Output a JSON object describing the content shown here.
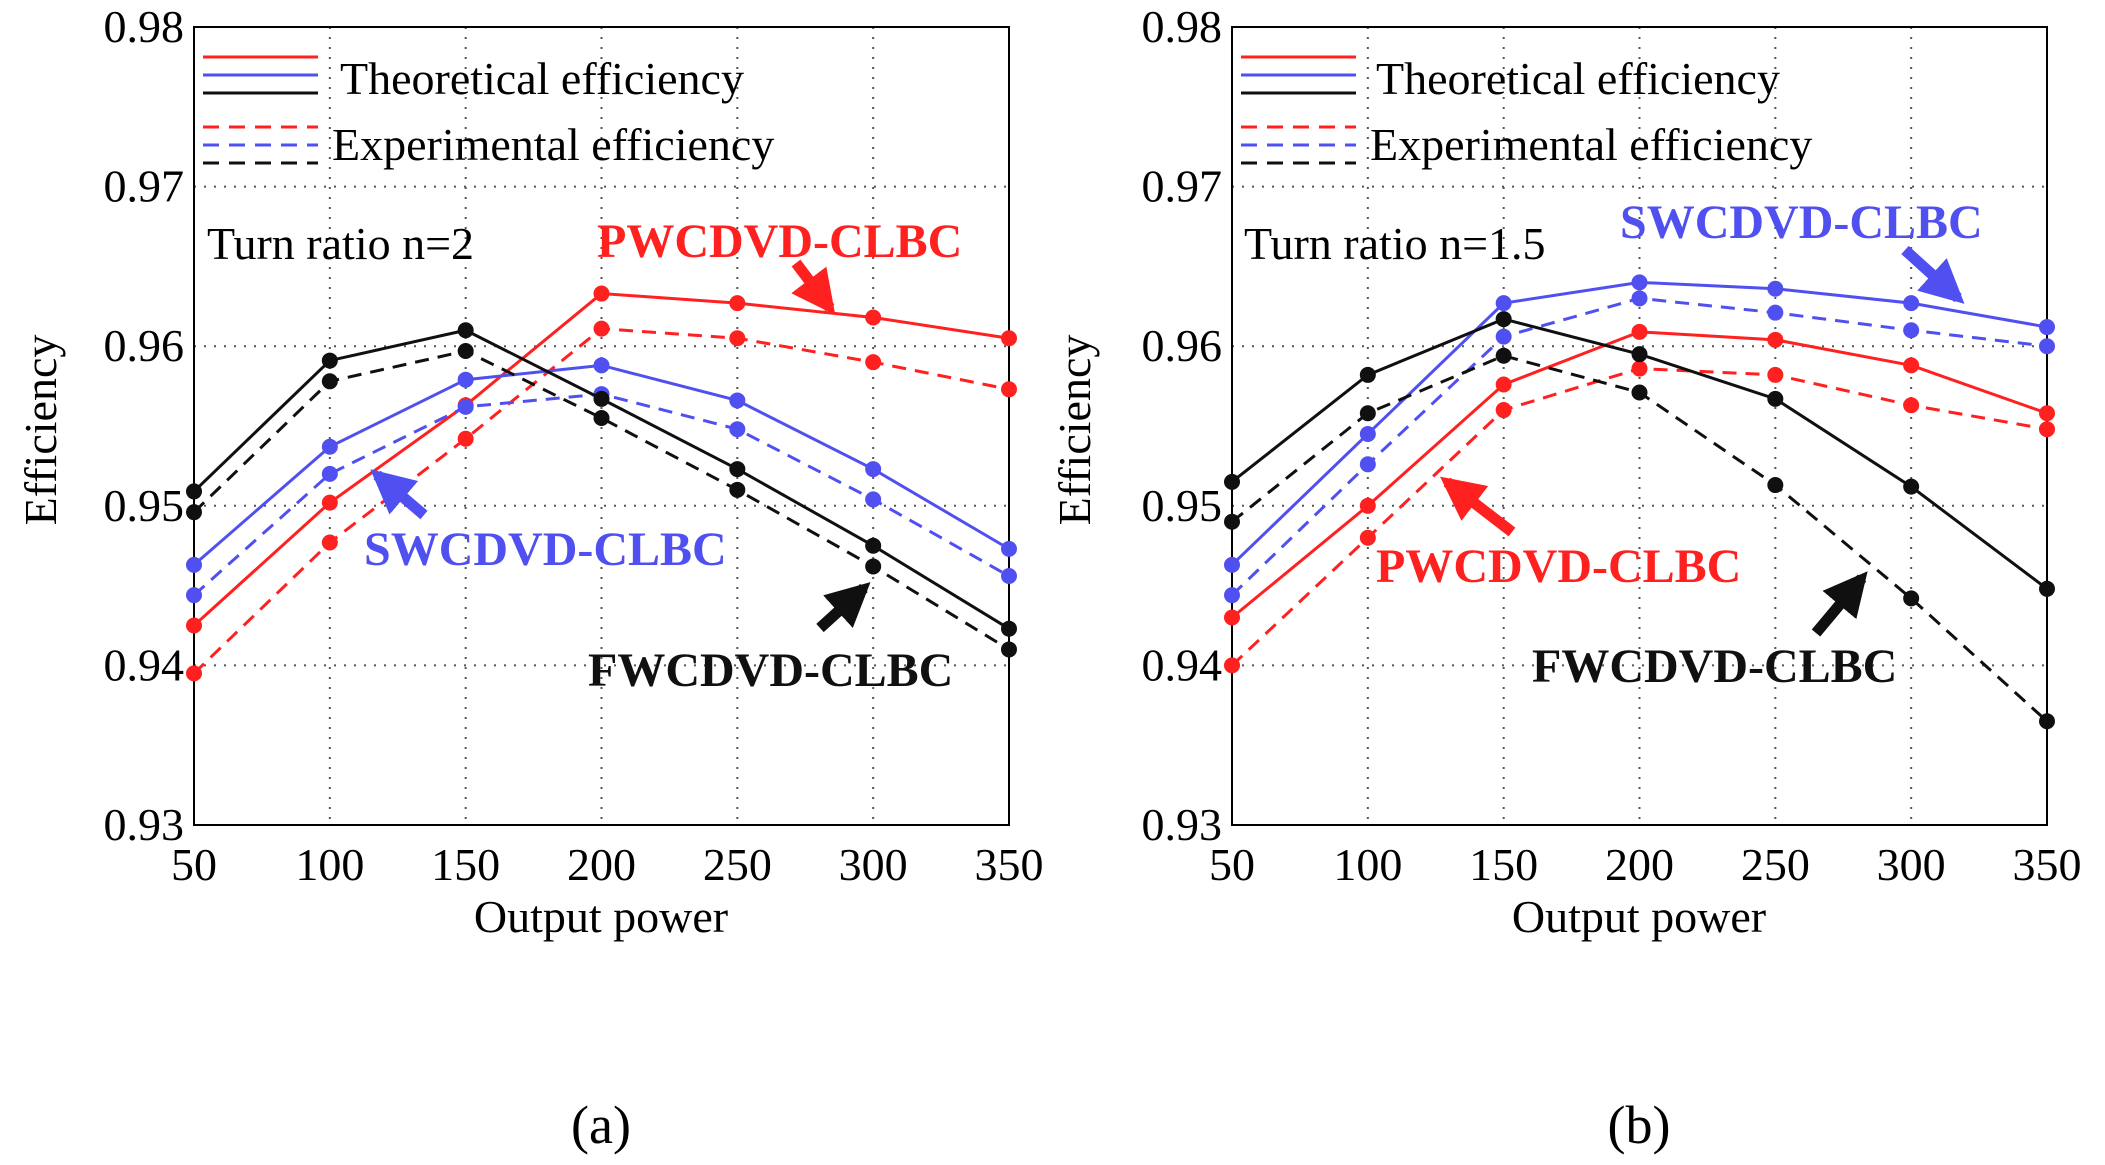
{
  "colors": {
    "red": "#ff2020",
    "blue": "#5050f0",
    "black": "#101010"
  },
  "chart_data": [
    {
      "type": "line",
      "panel_label": "(a)",
      "annotation": "Turn ratio n=2",
      "xlabel": "Output power",
      "ylabel": "Efficiency",
      "xlim": [
        50,
        350
      ],
      "ylim": [
        0.93,
        0.98
      ],
      "xticks": [
        "50",
        "100",
        "150",
        "200",
        "250",
        "300",
        "350"
      ],
      "yticks": [
        "0.93",
        "0.94",
        "0.95",
        "0.96",
        "0.97",
        "0.98"
      ],
      "grid": true,
      "legend": [
        "Theoretical efficiency",
        "Experimental efficiency"
      ],
      "x": [
        50,
        100,
        150,
        200,
        250,
        300,
        350
      ],
      "series": [
        {
          "name": "PWCDVD-CLBC theoretical",
          "color": "red",
          "style": "solid",
          "values": [
            0.9425,
            0.9502,
            0.9563,
            0.9633,
            0.9627,
            0.9618,
            0.9605
          ]
        },
        {
          "name": "PWCDVD-CLBC experimental",
          "color": "red",
          "style": "dashed",
          "values": [
            0.9395,
            0.9477,
            0.9542,
            0.9611,
            0.9605,
            0.959,
            0.9573
          ]
        },
        {
          "name": "SWCDVD-CLBC theoretical",
          "color": "blue",
          "style": "solid",
          "values": [
            0.9463,
            0.9537,
            0.9579,
            0.9588,
            0.9566,
            0.9523,
            0.9473
          ]
        },
        {
          "name": "SWCDVD-CLBC experimental",
          "color": "blue",
          "style": "dashed",
          "values": [
            0.9444,
            0.952,
            0.9562,
            0.957,
            0.9548,
            0.9504,
            0.9456
          ]
        },
        {
          "name": "FWCDVD-CLBC theoretical",
          "color": "black",
          "style": "solid",
          "values": [
            0.9509,
            0.9591,
            0.961,
            0.9567,
            0.9523,
            0.9475,
            0.9423
          ]
        },
        {
          "name": "FWCDVD-CLBC experimental",
          "color": "black",
          "style": "dashed",
          "values": [
            0.9496,
            0.9578,
            0.9597,
            0.9555,
            0.951,
            0.9462,
            0.941
          ]
        }
      ],
      "labels": [
        {
          "text": "PWCDVD-CLBC",
          "color": "red"
        },
        {
          "text": "SWCDVD-CLBC",
          "color": "blue"
        },
        {
          "text": "FWCDVD-CLBC",
          "color": "black"
        }
      ]
    },
    {
      "type": "line",
      "panel_label": "(b)",
      "annotation": "Turn ratio n=1.5",
      "xlabel": "Output power",
      "ylabel": "Efficiency",
      "xlim": [
        50,
        350
      ],
      "ylim": [
        0.93,
        0.98
      ],
      "xticks": [
        "50",
        "100",
        "150",
        "200",
        "250",
        "300",
        "350"
      ],
      "yticks": [
        "0.93",
        "0.94",
        "0.95",
        "0.96",
        "0.97",
        "0.98"
      ],
      "grid": true,
      "legend": [
        "Theoretical efficiency",
        "Experimental efficiency"
      ],
      "x": [
        50,
        100,
        150,
        200,
        250,
        300,
        350
      ],
      "series": [
        {
          "name": "SWCDVD-CLBC theoretical",
          "color": "blue",
          "style": "solid",
          "values": [
            0.9463,
            0.9545,
            0.9627,
            0.964,
            0.9636,
            0.9627,
            0.9612
          ]
        },
        {
          "name": "SWCDVD-CLBC experimental",
          "color": "blue",
          "style": "dashed",
          "values": [
            0.9444,
            0.9526,
            0.9606,
            0.963,
            0.9621,
            0.961,
            0.96
          ]
        },
        {
          "name": "PWCDVD-CLBC theoretical",
          "color": "red",
          "style": "solid",
          "values": [
            0.943,
            0.95,
            0.9576,
            0.9609,
            0.9604,
            0.9588,
            0.9558
          ]
        },
        {
          "name": "PWCDVD-CLBC experimental",
          "color": "red",
          "style": "dashed",
          "values": [
            0.94,
            0.948,
            0.956,
            0.9586,
            0.9582,
            0.9563,
            0.9548
          ]
        },
        {
          "name": "FWCDVD-CLBC theoretical",
          "color": "black",
          "style": "solid",
          "values": [
            0.9515,
            0.9582,
            0.9617,
            0.9595,
            0.9567,
            0.9512,
            0.9448
          ]
        },
        {
          "name": "FWCDVD-CLBC experimental",
          "color": "black",
          "style": "dashed",
          "values": [
            0.949,
            0.9558,
            0.9594,
            0.9571,
            0.9513,
            0.9442,
            0.9365
          ]
        }
      ],
      "labels": [
        {
          "text": "SWCDVD-CLBC",
          "color": "blue"
        },
        {
          "text": "PWCDVD-CLBC",
          "color": "red"
        },
        {
          "text": "FWCDVD-CLBC",
          "color": "black"
        }
      ]
    }
  ]
}
